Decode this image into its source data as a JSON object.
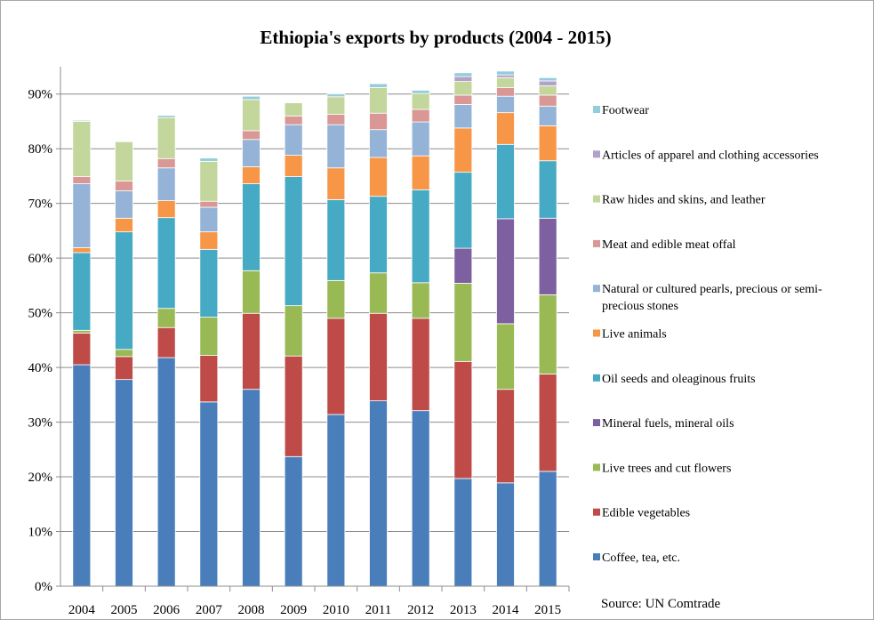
{
  "chart_data": {
    "type": "bar",
    "stacked": true,
    "title": "Ethiopia's exports by products (2004 - 2015)",
    "xlabel": "",
    "ylabel": "",
    "ylim": [
      0,
      0.95
    ],
    "y_ticks": [
      "0%",
      "10%",
      "20%",
      "30%",
      "40%",
      "50%",
      "60%",
      "70%",
      "80%",
      "90%"
    ],
    "y_tick_values": [
      0,
      0.1,
      0.2,
      0.3,
      0.4,
      0.5,
      0.6,
      0.7,
      0.8,
      0.9
    ],
    "grid": true,
    "legend_position": "right",
    "source": "Source: UN Comtrade",
    "categories": [
      "2004",
      "2005",
      "2006",
      "2007",
      "2008",
      "2009",
      "2010",
      "2011",
      "2012",
      "2013",
      "2014",
      "2015"
    ],
    "series": [
      {
        "name": "Coffee, tea, etc.",
        "color": "#4a7ebb",
        "values": [
          0.405,
          0.378,
          0.418,
          0.337,
          0.36,
          0.237,
          0.314,
          0.339,
          0.321,
          0.197,
          0.189,
          0.21
        ]
      },
      {
        "name": "Edible vegetables",
        "color": "#be4b48",
        "values": [
          0.058,
          0.042,
          0.055,
          0.085,
          0.139,
          0.184,
          0.176,
          0.16,
          0.169,
          0.214,
          0.171,
          0.178
        ]
      },
      {
        "name": "Live trees and cut flowers",
        "color": "#98b954",
        "values": [
          0.005,
          0.013,
          0.035,
          0.07,
          0.078,
          0.092,
          0.069,
          0.074,
          0.065,
          0.143,
          0.12,
          0.145
        ]
      },
      {
        "name": "Mineral fuels, mineral oils",
        "color": "#7d60a0",
        "values": [
          0,
          0,
          0,
          0,
          0,
          0,
          0,
          0,
          0,
          0.064,
          0.192,
          0.14
        ]
      },
      {
        "name": "Oil seeds and oleaginous fruits",
        "color": "#46aac5",
        "values": [
          0.142,
          0.215,
          0.166,
          0.124,
          0.159,
          0.236,
          0.148,
          0.14,
          0.17,
          0.139,
          0.136,
          0.105
        ]
      },
      {
        "name": "Live animals",
        "color": "#f79646",
        "values": [
          0.009,
          0.025,
          0.031,
          0.032,
          0.031,
          0.039,
          0.058,
          0.071,
          0.062,
          0.081,
          0.058,
          0.064
        ]
      },
      {
        "name": "Natural or cultured pearls, precious or semi-precious stones",
        "color": "#95b3d7",
        "values": [
          0.117,
          0.05,
          0.06,
          0.045,
          0.05,
          0.056,
          0.079,
          0.051,
          0.062,
          0.043,
          0.03,
          0.036
        ]
      },
      {
        "name": "Meat and edible meat offal",
        "color": "#d99795",
        "values": [
          0.013,
          0.018,
          0.017,
          0.011,
          0.016,
          0.016,
          0.019,
          0.03,
          0.023,
          0.017,
          0.016,
          0.02
        ]
      },
      {
        "name": "Raw hides and skins, and leather",
        "color": "#c3d69b",
        "values": [
          0.101,
          0.072,
          0.075,
          0.073,
          0.057,
          0.024,
          0.032,
          0.047,
          0.029,
          0.025,
          0.018,
          0.017
        ]
      },
      {
        "name": "Articles of apparel and clothing accessories",
        "color": "#b3a2c7",
        "values": [
          0,
          0,
          0,
          0,
          0,
          0,
          0,
          0,
          0,
          0.009,
          0.005,
          0.009
        ]
      },
      {
        "name": "Footwear",
        "color": "#93cddd",
        "values": [
          0.002,
          0.001,
          0.004,
          0.006,
          0.006,
          0.001,
          0.005,
          0.007,
          0.006,
          0.007,
          0.007,
          0.006
        ]
      }
    ]
  }
}
